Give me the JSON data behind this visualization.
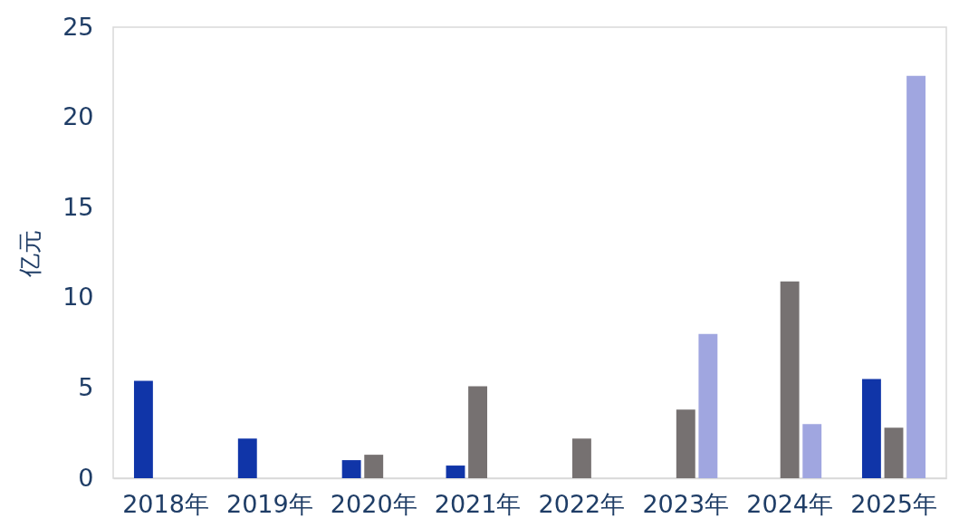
{
  "chart_data": {
    "type": "bar",
    "ylabel": "亿元",
    "categories": [
      "2018年",
      "2019年",
      "2020年",
      "2021年",
      "2022年",
      "2023年",
      "2024年",
      "2025年"
    ],
    "series": [
      {
        "color": "#1035a8",
        "values": [
          5.4,
          2.2,
          1.0,
          0.7,
          null,
          null,
          null,
          5.5
        ]
      },
      {
        "color": "#767171",
        "values": [
          null,
          null,
          1.3,
          5.1,
          2.2,
          3.8,
          10.9,
          2.8
        ]
      },
      {
        "color": "#a0a6e0",
        "values": [
          null,
          null,
          null,
          null,
          null,
          8.0,
          3.0,
          22.3
        ]
      }
    ],
    "ylim": [
      0,
      25
    ],
    "yticks": [
      0,
      5,
      10,
      15,
      20,
      25
    ],
    "grid": false,
    "legend": false
  }
}
